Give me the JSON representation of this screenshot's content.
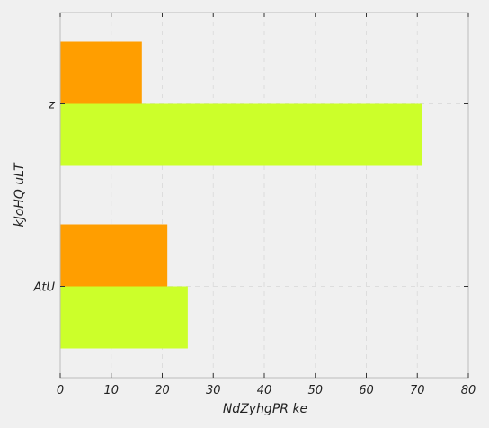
{
  "chart_data": {
    "type": "bar",
    "orientation": "horizontal",
    "categories": [
      "AtU",
      "z"
    ],
    "series": [
      {
        "values": [
          25,
          71
        ],
        "color": "#ccff2a"
      },
      {
        "values": [
          21,
          16
        ],
        "color": "#ff9e00"
      }
    ],
    "xlabel": "NdZyhgPR ke",
    "ylabel": "kJoHQ uLT",
    "xlim": [
      0,
      80
    ],
    "xticks": [
      "0",
      "10",
      "20",
      "30",
      "40",
      "50",
      "60",
      "70",
      "80"
    ],
    "grid": true,
    "legend": false
  },
  "colors": {
    "background": "#f0f0f0",
    "plot_background": "#f0f0f0",
    "grid": "#dddddd",
    "axis": "#bbbbbb"
  }
}
